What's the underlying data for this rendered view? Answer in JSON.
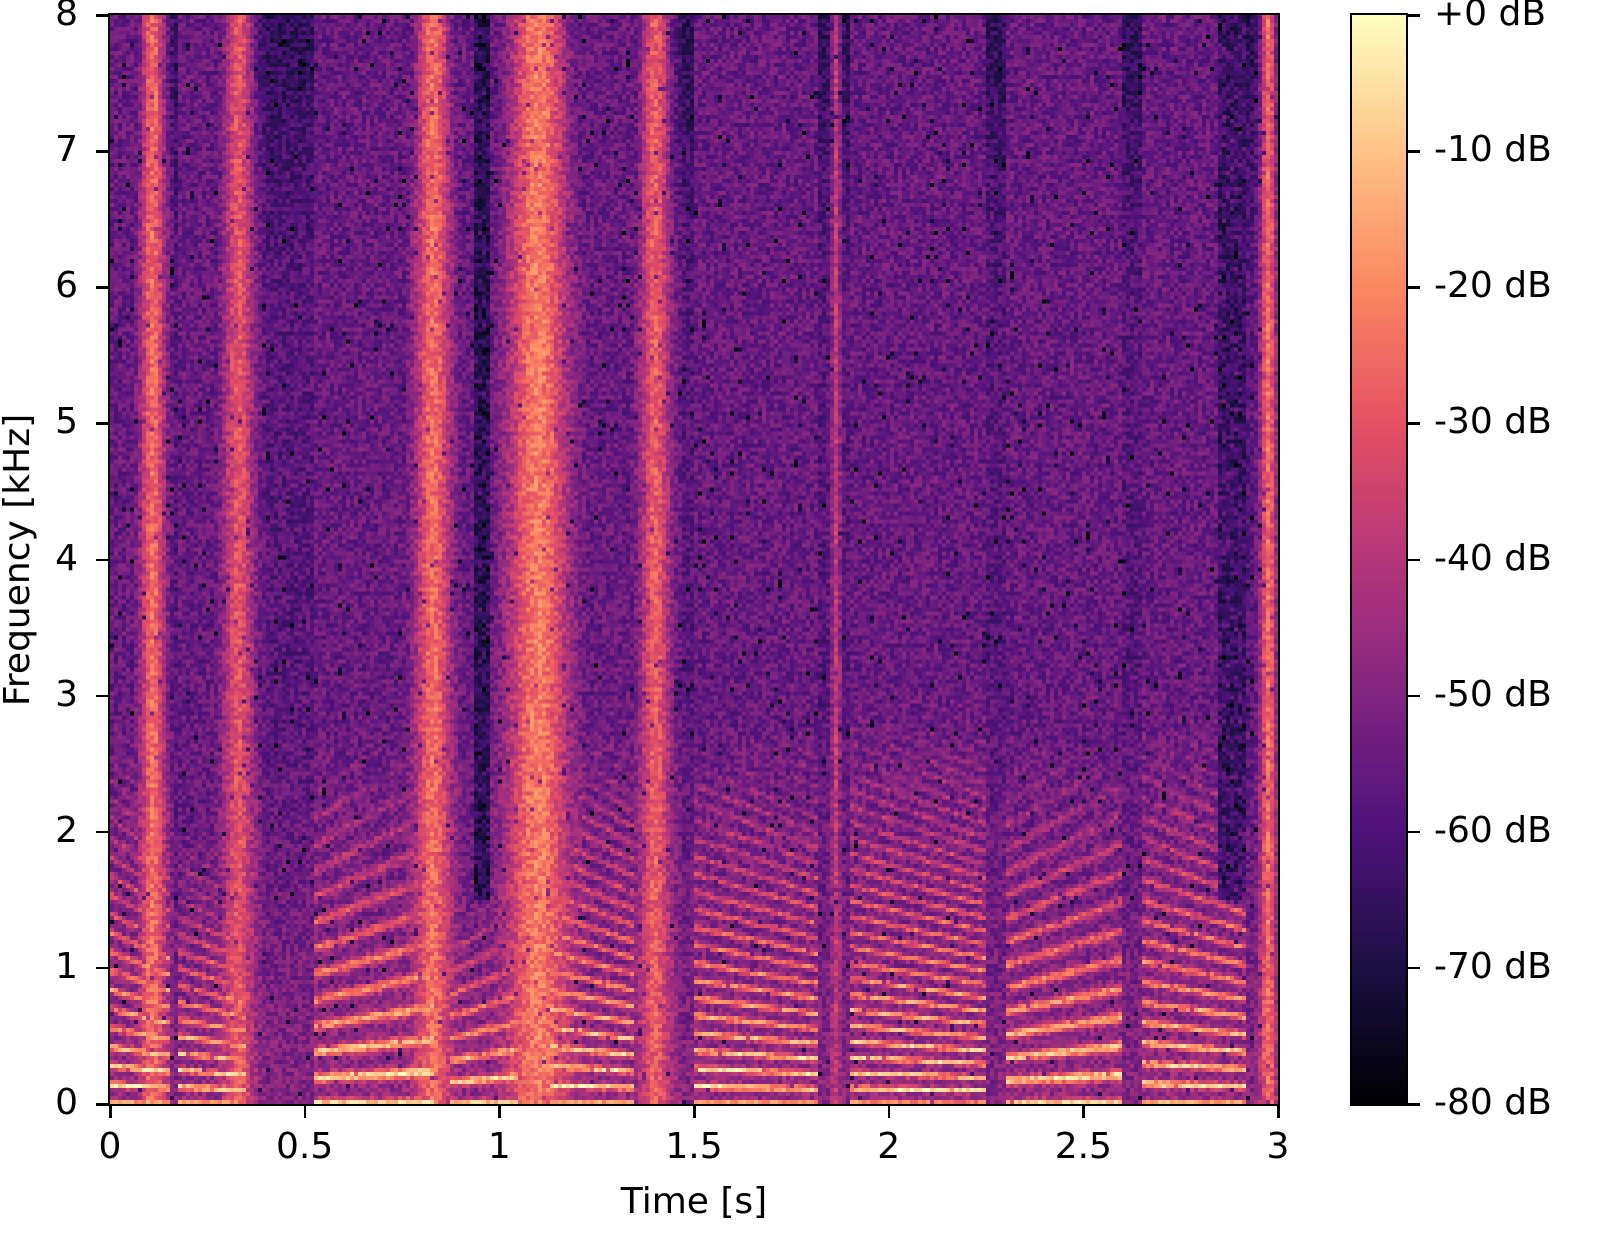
{
  "chart_data": {
    "type": "heatmap",
    "subtype": "spectrogram",
    "colormap": "magma",
    "title": "",
    "xlabel": "Time [s]",
    "ylabel": "Frequency [kHz]",
    "xlim": [
      0,
      3
    ],
    "ylim": [
      0,
      8
    ],
    "x_ticks": [
      0,
      0.5,
      1,
      1.5,
      2,
      2.5,
      3
    ],
    "x_tick_labels": [
      "0",
      "0.5",
      "1",
      "1.5",
      "2",
      "2.5",
      "3"
    ],
    "y_ticks": [
      0,
      1,
      2,
      3,
      4,
      5,
      6,
      7,
      8
    ],
    "y_tick_labels": [
      "0",
      "1",
      "2",
      "3",
      "4",
      "5",
      "6",
      "7",
      "8"
    ],
    "colorbar": {
      "range_db": [
        -80,
        0
      ],
      "ticks": [
        0,
        -10,
        -20,
        -30,
        -40,
        -50,
        -60,
        -70,
        -80
      ],
      "tick_labels": [
        "+0 dB",
        "-10 dB",
        "-20 dB",
        "-30 dB",
        "-40 dB",
        "-50 dB",
        "-60 dB",
        "-70 dB",
        "-80 dB"
      ],
      "colors": [
        "#000004",
        "#1c1044",
        "#4f127b",
        "#812581",
        "#b5367a",
        "#e55064",
        "#fb8761",
        "#fec287",
        "#fcfdbf"
      ]
    },
    "grid": false,
    "legend": null,
    "broadband_bands": [
      {
        "t_start": 0.07,
        "t_end": 0.15,
        "f_top": 8,
        "level_db": -25
      },
      {
        "t_start": 0.28,
        "t_end": 0.38,
        "f_top": 8,
        "level_db": -30
      },
      {
        "t_start": 0.77,
        "t_end": 0.89,
        "f_top": 8,
        "level_db": -25
      },
      {
        "t_start": 1.0,
        "t_end": 1.2,
        "f_top": 8,
        "level_db": -22
      },
      {
        "t_start": 1.35,
        "t_end": 1.45,
        "f_top": 8,
        "level_db": -28
      },
      {
        "t_start": 1.85,
        "t_end": 1.88,
        "f_top": 8,
        "level_db": -38
      },
      {
        "t_start": 2.95,
        "t_end": 3.0,
        "f_top": 8,
        "level_db": -25
      }
    ],
    "voiced_segments": [
      {
        "t_start": 0.0,
        "t_end": 0.15,
        "f0_hz": 140,
        "f_top": 2.3
      },
      {
        "t_start": 0.17,
        "t_end": 0.35,
        "f0_hz": 125,
        "f_top": 1.6
      },
      {
        "t_start": 0.52,
        "t_end": 0.83,
        "f0_hz": 190,
        "f_top": 2.2
      },
      {
        "t_start": 0.87,
        "t_end": 1.05,
        "f0_hz": 160,
        "f_top": 1.2
      },
      {
        "t_start": 1.13,
        "t_end": 1.35,
        "f0_hz": 140,
        "f_top": 2.4
      },
      {
        "t_start": 1.5,
        "t_end": 1.82,
        "f0_hz": 130,
        "f_top": 2.3
      },
      {
        "t_start": 1.9,
        "t_end": 2.25,
        "f0_hz": 115,
        "f_top": 2.5
      },
      {
        "t_start": 2.3,
        "t_end": 2.6,
        "f0_hz": 170,
        "f_top": 2.2
      },
      {
        "t_start": 2.65,
        "t_end": 2.92,
        "f0_hz": 150,
        "f_top": 2.4
      }
    ],
    "silence_gaps": [
      {
        "t_start": 0.93,
        "t_end": 0.98,
        "level_db": -72
      },
      {
        "t_start": 2.85,
        "t_end": 2.92,
        "level_db": -68
      }
    ],
    "background_level_db": -58
  }
}
